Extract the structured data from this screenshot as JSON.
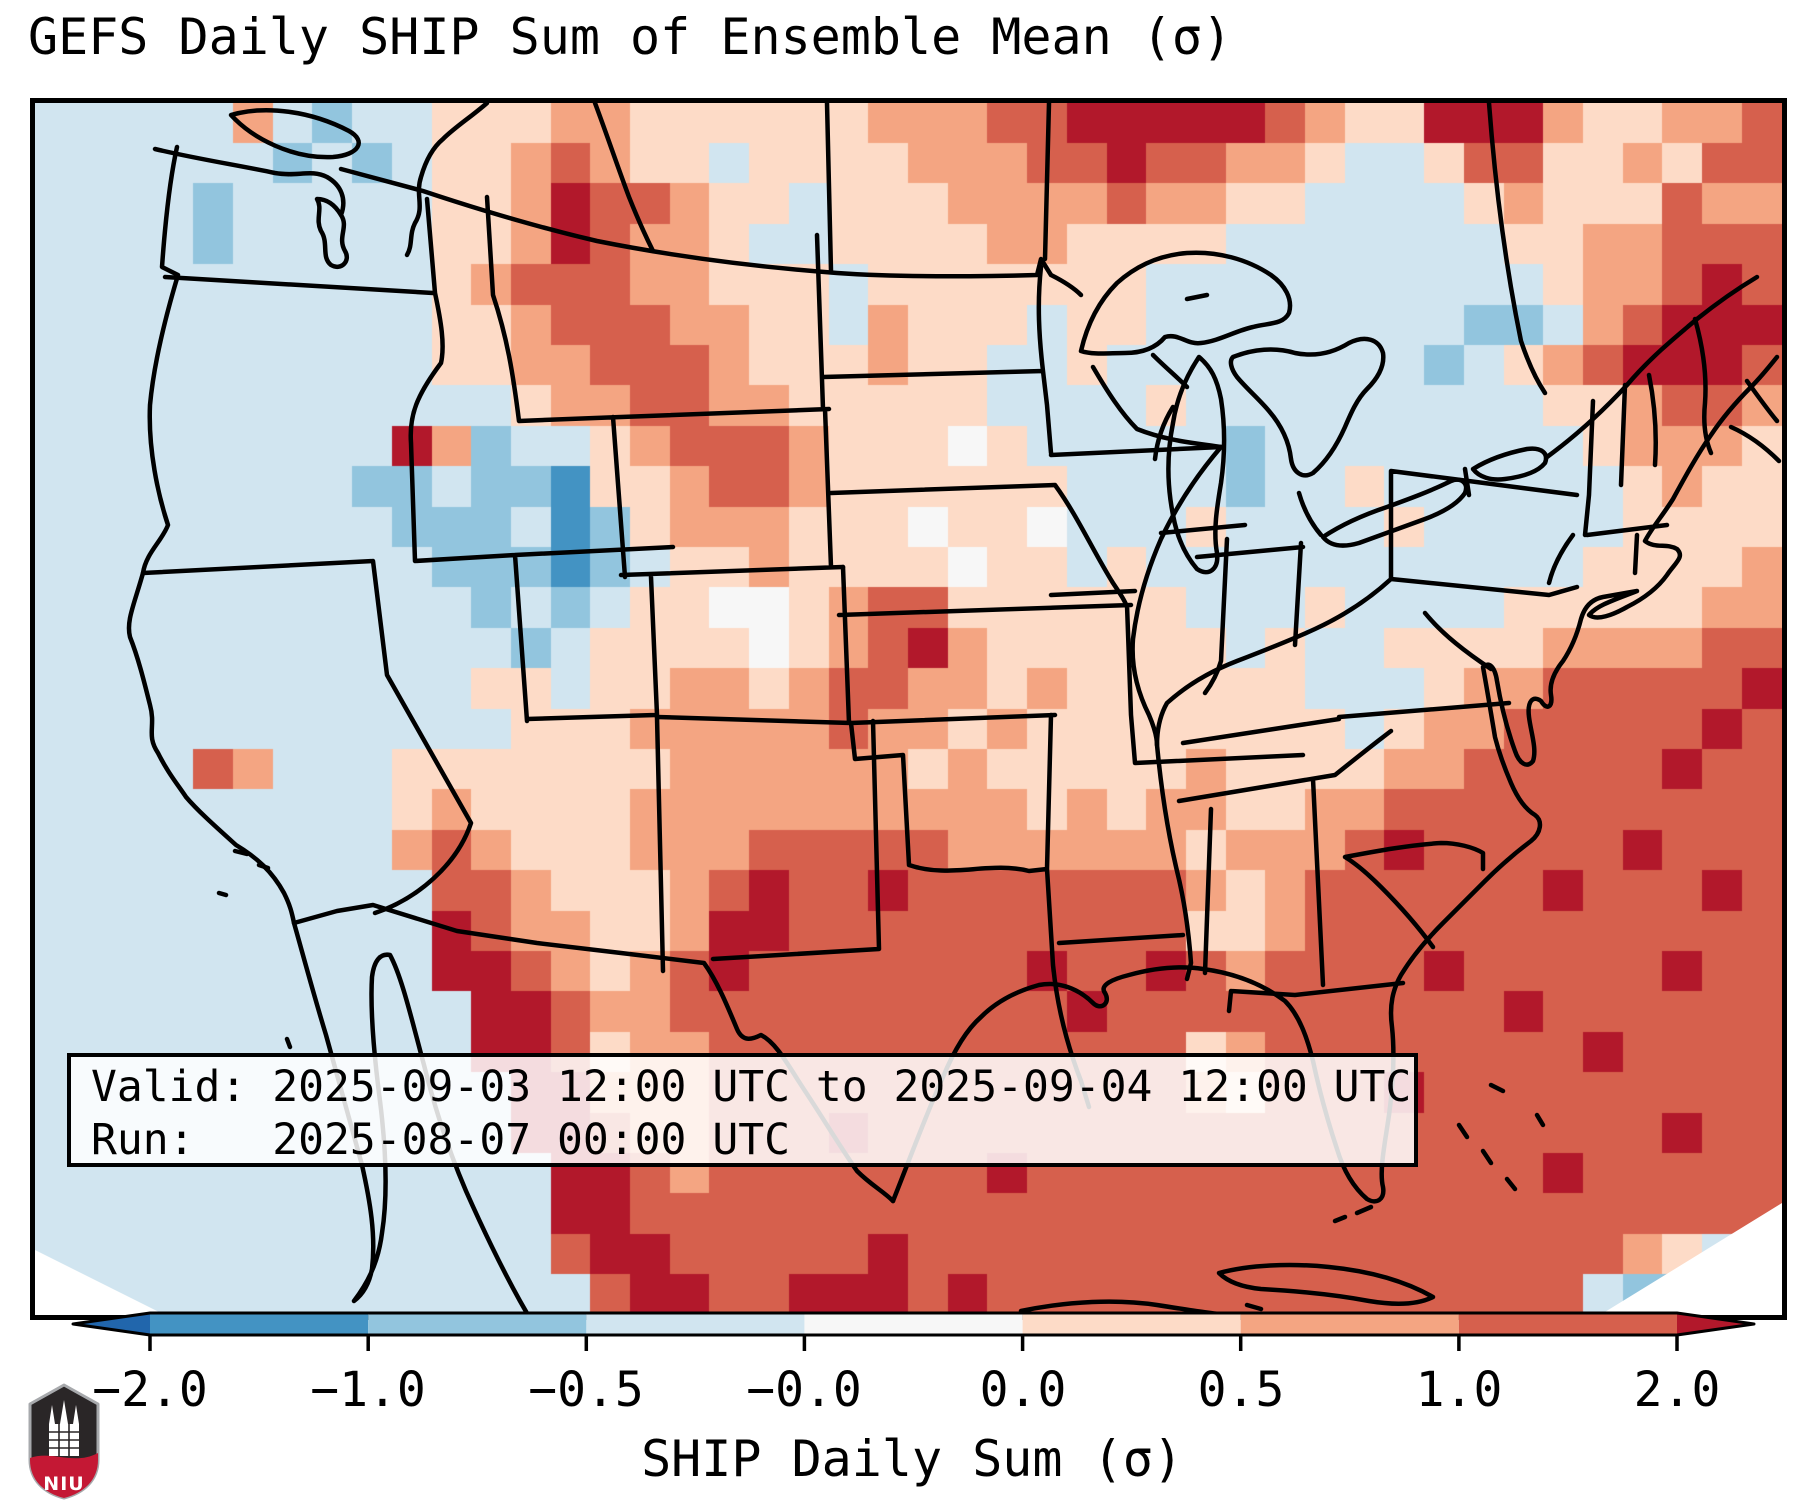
{
  "title": "GEFS Daily SHIP Sum of Ensemble Mean (σ)",
  "annotation": {
    "valid_line": "Valid: 2025-09-03 12:00 UTC to 2025-09-04 12:00 UTC",
    "run_line": "Run:   2025-08-07 00:00 UTC"
  },
  "logo": {
    "text": "NIU"
  },
  "chart_data": {
    "type": "heatmap",
    "title": "GEFS Daily SHIP Sum of Ensemble Mean (σ)",
    "region": "CONUS / North America, Lambert conformal view",
    "valid": "2025-09-03 12:00 UTC to 2025-09-04 12:00 UTC",
    "run": "2025-08-07 00:00 UTC",
    "colorbar": {
      "label": "SHIP Daily Sum (σ)",
      "tick_labels": [
        "−2.0",
        "−1.0",
        "−0.5",
        "−0.0",
        "0.0",
        "0.5",
        "1.0",
        "2.0"
      ],
      "boundaries": [
        -2.0,
        -1.0,
        -0.5,
        -0.0,
        0.0,
        0.5,
        1.0,
        2.0
      ],
      "segment_colors": [
        "#4393c3",
        "#92c5de",
        "#d1e5f0",
        "#f7f7f7",
        "#fddbc7",
        "#f4a582",
        "#d6604d"
      ],
      "under_color": "#2166ac",
      "over_color": "#b2182b",
      "extend": "both"
    },
    "grid": {
      "comment": "Approximate coarse reading of the pixelated sigma field; digits 0-8 index palette (blue negative anomaly to dark-red positive anomaly).",
      "cols": 44,
      "rows": 30,
      "palette": [
        "#2166ac",
        "#4393c3",
        "#92c5de",
        "#d1e5f0",
        "#f7f7f7",
        "#fddbc7",
        "#f4a582",
        "#d6604d",
        "#b2182b"
      ],
      "rows_data": [
        "33333632335556655555566677888887655888655667",
        "33333323235567655355556667787766533577556577",
        "33332333335568776553555666676655333356555766",
        "33332333335568766533555566555533333335566777",
        "33333333335677766555355555553333333333566787",
        "33333333335567776655365553553333333322367888",
        "33333333335566777655565533533333333235678887",
        "33333333333356677665555533335333333333556776",
        "33333333386233567776555453333323333333356665",
        "33333333223221556776555555333323353333335655",
        "33333333322231256665554554333533335333335555",
        "33333333332221235565555455353333333333355556",
        "33333333333232355445677555555333533335555566",
        "33333333333323555545678655555535335555666677",
        "33333333333553556656776656555555333566777778",
        "33333333333355566666766565555555535667777787",
        "33337633355555556666665655555655556677777877",
        "33333333356555566666666665656655667777777777",
        "33333333367655566677777666666566678777778777",
        "33333333337765556787787777777656777777877787",
        "33333333338766556887777777777556777777777777",
        "33333333338876567877777778778767777877777877",
        "33333333333887667777777777877777777778777777",
        "33333333333887566777777777777567777777787777",
        "33333333333388666777777777777657778777777777",
        "33333333333388766777877777777777777777777877",
        "33333333333338876777777787777777777777877777",
        "33333333333338877777777777777777777777777777",
        "33333333333337887777787777777777777777776537",
        "33333333333333788778887877777777777777732237"
      ]
    }
  }
}
